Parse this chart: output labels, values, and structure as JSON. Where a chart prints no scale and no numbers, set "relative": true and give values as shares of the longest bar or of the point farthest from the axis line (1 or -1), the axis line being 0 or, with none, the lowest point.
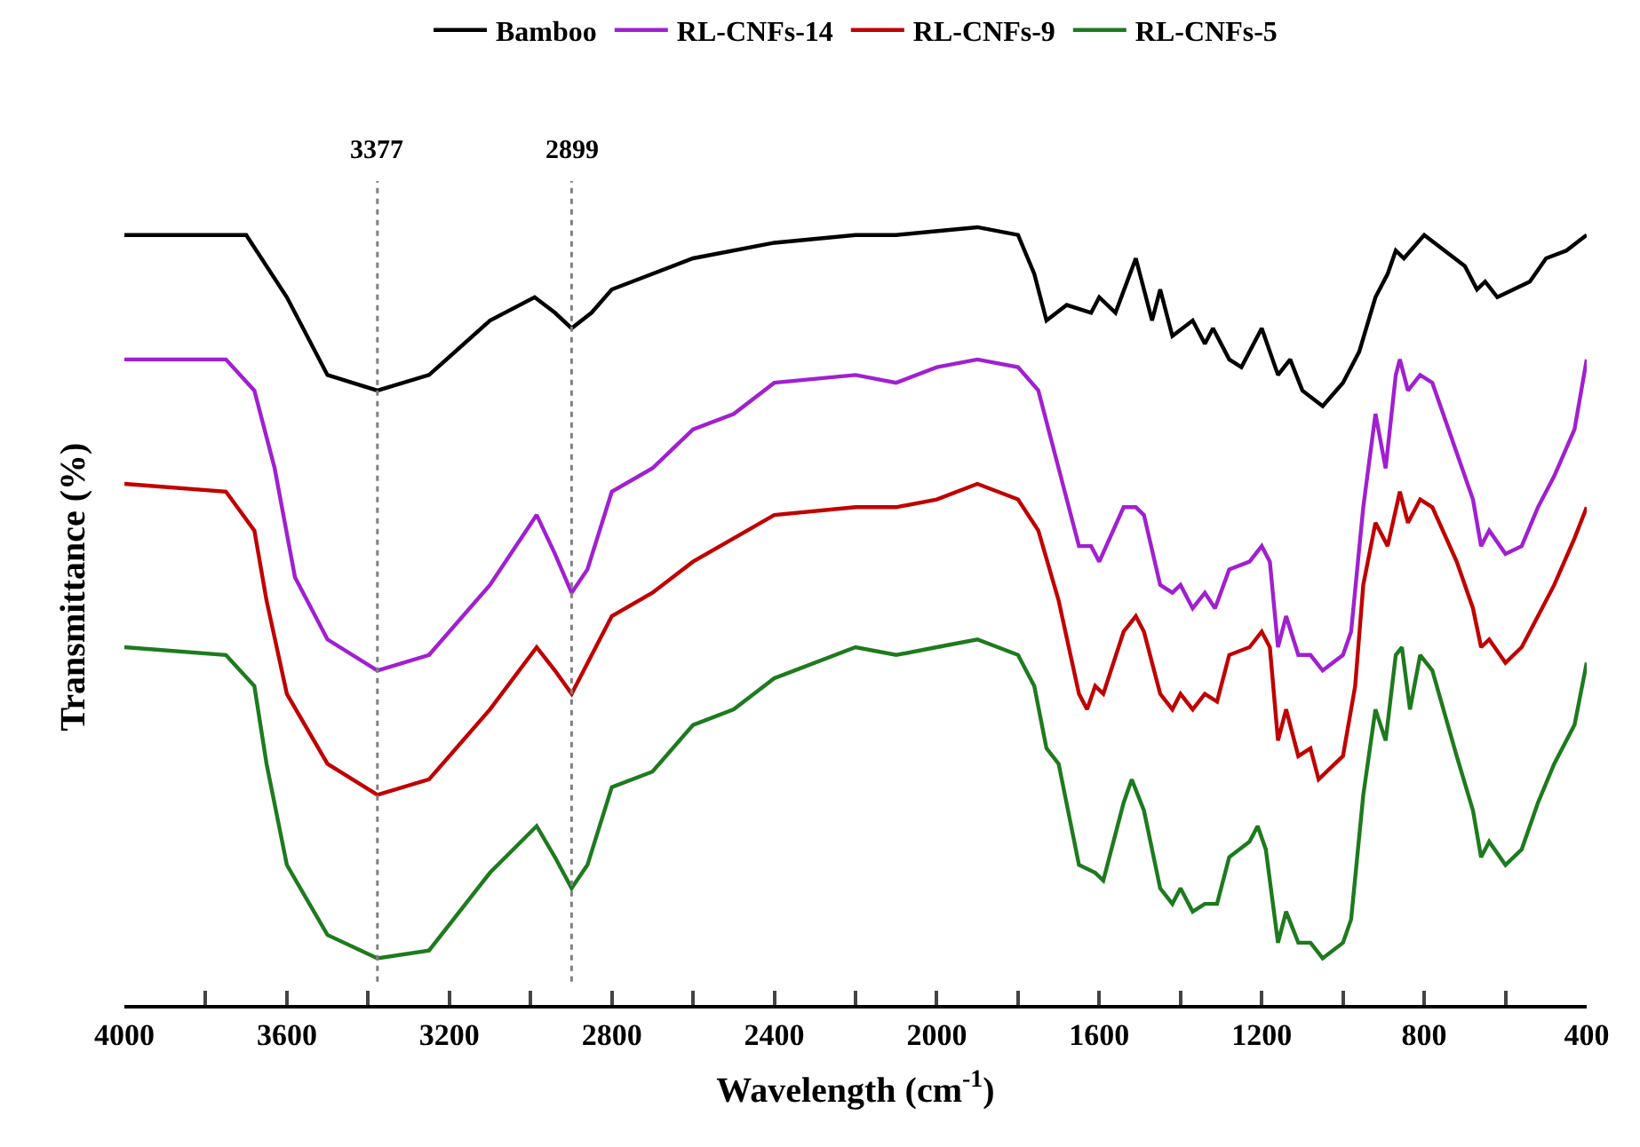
{
  "chart_data": {
    "type": "line",
    "relative": true,
    "xlabel": "Wavelength (cm$^{-1}$)",
    "ylabel": "Transmittance (%)",
    "xlim": [
      4000,
      400
    ],
    "xticks": [
      4000,
      {
        "value": 3800,
        "label": null
      },
      3600,
      {
        "value": 3400,
        "label": null
      },
      3200,
      {
        "value": 3000,
        "label": null
      },
      2800,
      {
        "value": 2600,
        "label": null
      },
      2400,
      {
        "value": 2200,
        "label": null
      },
      2000,
      {
        "value": 1800,
        "label": null
      },
      1600,
      {
        "value": 1400,
        "label": null
      },
      1200,
      {
        "value": 1000,
        "label": null
      },
      800,
      {
        "value": 600,
        "label": null
      },
      400
    ],
    "legend": "top",
    "grid": false,
    "tick_labels": "x",
    "line_style": "solid",
    "marker": "none",
    "ref_lines": [
      {
        "axis": "x",
        "value": 3377,
        "label": "3377",
        "color": "#808080",
        "line_style": "dotted"
      },
      {
        "axis": "x",
        "value": 2899,
        "label": "2899",
        "color": "#808080",
        "line_style": "dotted"
      }
    ],
    "series": [
      {
        "name": "Bamboo",
        "color": "#000000",
        "x": [
          4000,
          3700,
          3600,
          3500,
          3377,
          3250,
          3100,
          2990,
          2940,
          2899,
          2850,
          2800,
          2600,
          2400,
          2200,
          2100,
          1900,
          1800,
          1760,
          1730,
          1680,
          1620,
          1600,
          1560,
          1510,
          1470,
          1450,
          1420,
          1370,
          1340,
          1320,
          1280,
          1250,
          1200,
          1160,
          1130,
          1100,
          1050,
          1000,
          960,
          920,
          890,
          870,
          850,
          800,
          750,
          700,
          670,
          650,
          620,
          580,
          540,
          500,
          450,
          400
        ],
        "values": [
          0.99,
          0.99,
          0.91,
          0.81,
          0.79,
          0.81,
          0.88,
          0.91,
          0.89,
          0.87,
          0.89,
          0.92,
          0.96,
          0.98,
          0.99,
          0.99,
          1.0,
          0.99,
          0.94,
          0.88,
          0.9,
          0.89,
          0.91,
          0.89,
          0.96,
          0.88,
          0.92,
          0.86,
          0.88,
          0.85,
          0.87,
          0.83,
          0.82,
          0.87,
          0.81,
          0.83,
          0.79,
          0.77,
          0.8,
          0.84,
          0.91,
          0.94,
          0.97,
          0.96,
          0.99,
          0.97,
          0.95,
          0.92,
          0.93,
          0.91,
          0.92,
          0.93,
          0.96,
          0.97,
          0.99
        ]
      },
      {
        "name": "RL-CNFs-14",
        "color": "#a020d0",
        "x": [
          4000,
          3750,
          3680,
          3630,
          3580,
          3500,
          3377,
          3250,
          3100,
          2985,
          2940,
          2899,
          2860,
          2800,
          2700,
          2600,
          2500,
          2400,
          2200,
          2100,
          2000,
          1900,
          1800,
          1750,
          1700,
          1650,
          1620,
          1600,
          1540,
          1510,
          1490,
          1450,
          1420,
          1400,
          1370,
          1340,
          1315,
          1280,
          1230,
          1200,
          1180,
          1160,
          1140,
          1110,
          1080,
          1050,
          1000,
          980,
          950,
          920,
          895,
          870,
          860,
          840,
          810,
          780,
          720,
          680,
          660,
          640,
          600,
          560,
          520,
          480,
          430,
          400
        ],
        "values": [
          0.83,
          0.83,
          0.79,
          0.69,
          0.55,
          0.47,
          0.43,
          0.45,
          0.54,
          0.63,
          0.58,
          0.53,
          0.56,
          0.66,
          0.69,
          0.74,
          0.76,
          0.8,
          0.81,
          0.8,
          0.82,
          0.83,
          0.82,
          0.79,
          0.69,
          0.59,
          0.59,
          0.57,
          0.64,
          0.64,
          0.63,
          0.54,
          0.53,
          0.54,
          0.51,
          0.53,
          0.51,
          0.56,
          0.57,
          0.59,
          0.57,
          0.46,
          0.5,
          0.45,
          0.45,
          0.43,
          0.45,
          0.48,
          0.64,
          0.76,
          0.69,
          0.81,
          0.83,
          0.79,
          0.81,
          0.8,
          0.71,
          0.65,
          0.59,
          0.61,
          0.58,
          0.59,
          0.64,
          0.68,
          0.74,
          0.83
        ]
      },
      {
        "name": "RL-CNFs-9",
        "color": "#c00000",
        "x": [
          4000,
          3750,
          3680,
          3650,
          3600,
          3500,
          3377,
          3250,
          3100,
          2985,
          2940,
          2899,
          2800,
          2700,
          2600,
          2500,
          2400,
          2200,
          2100,
          2000,
          1900,
          1800,
          1750,
          1700,
          1650,
          1630,
          1610,
          1590,
          1540,
          1510,
          1490,
          1450,
          1420,
          1400,
          1370,
          1340,
          1310,
          1280,
          1230,
          1200,
          1180,
          1160,
          1140,
          1110,
          1080,
          1060,
          1000,
          970,
          950,
          920,
          890,
          860,
          840,
          810,
          780,
          720,
          680,
          660,
          640,
          600,
          560,
          520,
          480,
          430,
          400
        ],
        "values": [
          0.67,
          0.66,
          0.61,
          0.52,
          0.4,
          0.31,
          0.27,
          0.29,
          0.38,
          0.46,
          0.43,
          0.4,
          0.5,
          0.53,
          0.57,
          0.6,
          0.63,
          0.64,
          0.64,
          0.65,
          0.67,
          0.65,
          0.61,
          0.52,
          0.4,
          0.38,
          0.41,
          0.4,
          0.48,
          0.5,
          0.48,
          0.4,
          0.38,
          0.4,
          0.38,
          0.4,
          0.39,
          0.45,
          0.46,
          0.48,
          0.46,
          0.34,
          0.38,
          0.32,
          0.33,
          0.29,
          0.32,
          0.41,
          0.54,
          0.62,
          0.59,
          0.66,
          0.62,
          0.65,
          0.64,
          0.57,
          0.51,
          0.46,
          0.47,
          0.44,
          0.46,
          0.5,
          0.54,
          0.6,
          0.64
        ]
      },
      {
        "name": "RL-CNFs-5",
        "color": "#1e7a1e",
        "x": [
          4000,
          3750,
          3680,
          3650,
          3600,
          3500,
          3377,
          3250,
          3100,
          2985,
          2940,
          2899,
          2860,
          2800,
          2700,
          2600,
          2500,
          2400,
          2200,
          2100,
          2000,
          1900,
          1800,
          1760,
          1730,
          1700,
          1650,
          1610,
          1590,
          1540,
          1520,
          1490,
          1450,
          1420,
          1400,
          1370,
          1340,
          1310,
          1280,
          1230,
          1210,
          1190,
          1160,
          1140,
          1110,
          1080,
          1050,
          1000,
          980,
          950,
          920,
          895,
          870,
          855,
          835,
          810,
          780,
          720,
          680,
          660,
          640,
          600,
          560,
          520,
          480,
          430,
          400
        ],
        "values": [
          0.46,
          0.45,
          0.41,
          0.31,
          0.18,
          0.09,
          0.06,
          0.07,
          0.17,
          0.23,
          0.19,
          0.15,
          0.18,
          0.28,
          0.3,
          0.36,
          0.38,
          0.42,
          0.46,
          0.45,
          0.46,
          0.47,
          0.45,
          0.41,
          0.33,
          0.31,
          0.18,
          0.17,
          0.16,
          0.26,
          0.29,
          0.25,
          0.15,
          0.13,
          0.15,
          0.12,
          0.13,
          0.13,
          0.19,
          0.21,
          0.23,
          0.2,
          0.08,
          0.12,
          0.08,
          0.08,
          0.06,
          0.08,
          0.11,
          0.27,
          0.38,
          0.34,
          0.45,
          0.46,
          0.38,
          0.45,
          0.43,
          0.32,
          0.25,
          0.19,
          0.21,
          0.18,
          0.2,
          0.26,
          0.31,
          0.36,
          0.44
        ]
      }
    ]
  }
}
